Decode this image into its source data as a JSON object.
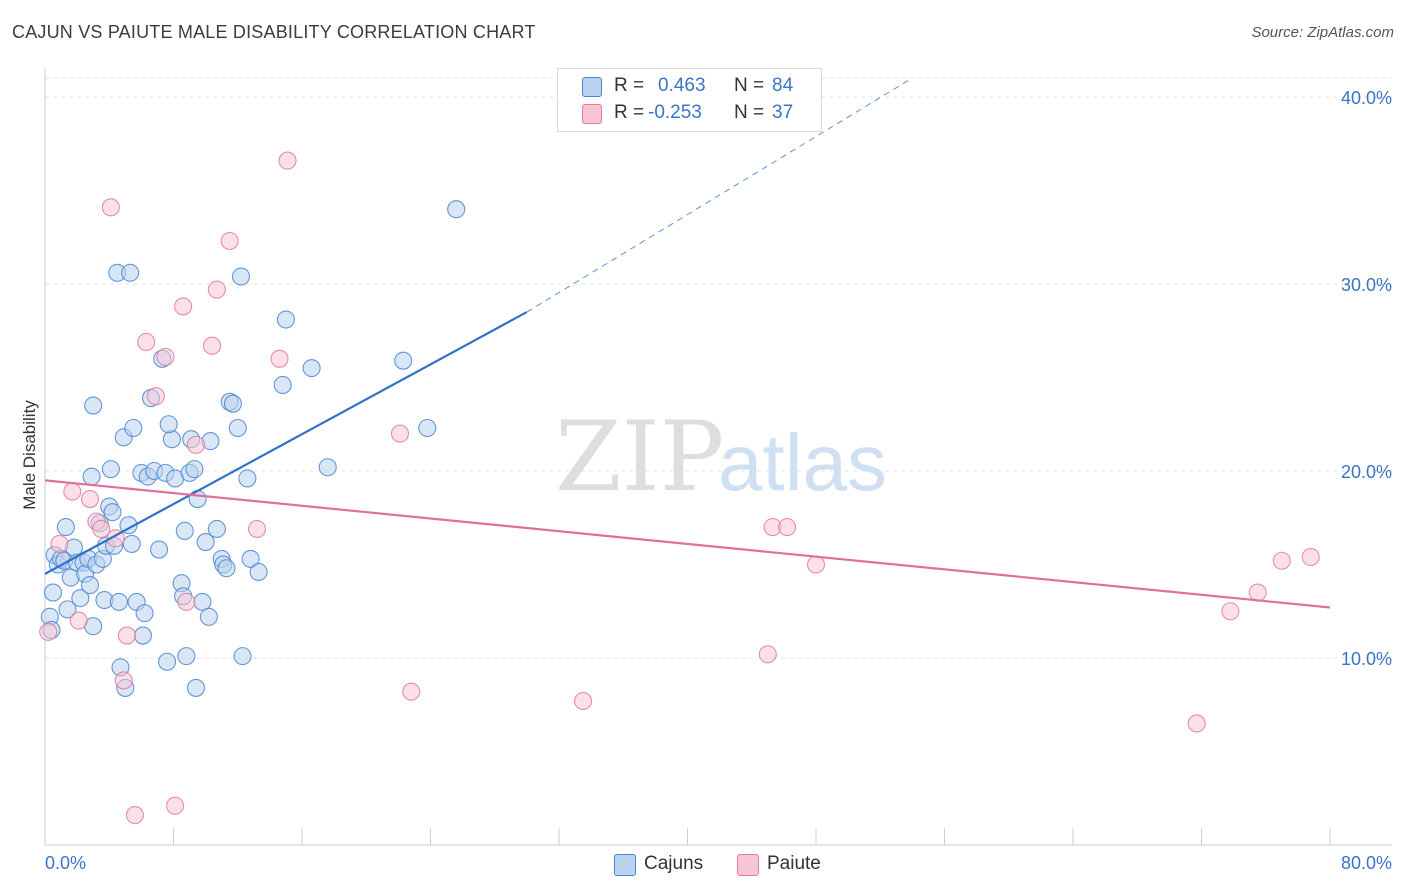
{
  "title": "CAJUN VS PAIUTE MALE DISABILITY CORRELATION CHART",
  "source": "Source: ZipAtlas.com",
  "watermark": {
    "zip": "ZIP",
    "atlas": "atlas"
  },
  "legend": {
    "rows": [
      {
        "r_label": "R =",
        "r_value": "0.463",
        "n_label": "N =",
        "n_value": "84"
      },
      {
        "r_label": "R =",
        "r_value": "-0.253",
        "n_label": "N =",
        "n_value": "37"
      }
    ]
  },
  "chart_data": {
    "type": "scatter",
    "title": "CAJUN VS PAIUTE MALE DISABILITY CORRELATION CHART",
    "xlabel": "",
    "ylabel": "Male Disability",
    "xlim": [
      0,
      80
    ],
    "ylim": [
      0,
      40
    ],
    "x_tick_labels": [
      "0.0%",
      "80.0%"
    ],
    "y_ticks": [
      10,
      20,
      30,
      40
    ],
    "y_tick_labels": [
      "10.0%",
      "20.0%",
      "30.0%",
      "40.0%"
    ],
    "grid": true,
    "legend_position": "top-center",
    "series": [
      {
        "name": "Cajuns",
        "color": "#4a86d0",
        "fill": "#b9d2ef",
        "r": 0.463,
        "n": 84,
        "trend": {
          "x": [
            0,
            30
          ],
          "y": [
            14.5,
            28.5
          ],
          "dashed_to": [
            54,
            40
          ]
        },
        "points": [
          [
            0.3,
            12.2
          ],
          [
            0.5,
            13.5
          ],
          [
            0.4,
            11.5
          ],
          [
            0.6,
            15.5
          ],
          [
            0.8,
            15.0
          ],
          [
            1.0,
            15.3
          ],
          [
            1.2,
            15.2
          ],
          [
            1.4,
            12.6
          ],
          [
            1.3,
            17.0
          ],
          [
            1.6,
            14.3
          ],
          [
            1.8,
            15.9
          ],
          [
            2.0,
            15.1
          ],
          [
            2.2,
            13.2
          ],
          [
            2.4,
            15.1
          ],
          [
            2.5,
            14.5
          ],
          [
            2.7,
            15.3
          ],
          [
            2.8,
            13.9
          ],
          [
            2.9,
            19.7
          ],
          [
            3.0,
            11.7
          ],
          [
            3.2,
            15.0
          ],
          [
            3.0,
            23.5
          ],
          [
            3.4,
            17.2
          ],
          [
            3.6,
            15.3
          ],
          [
            3.8,
            16.0
          ],
          [
            4.0,
            18.1
          ],
          [
            3.7,
            13.1
          ],
          [
            4.2,
            17.8
          ],
          [
            4.1,
            20.1
          ],
          [
            4.3,
            16.0
          ],
          [
            4.6,
            13.0
          ],
          [
            4.7,
            9.5
          ],
          [
            4.5,
            30.6
          ],
          [
            4.9,
            21.8
          ],
          [
            5.0,
            8.4
          ],
          [
            5.2,
            17.1
          ],
          [
            5.3,
            30.6
          ],
          [
            5.5,
            22.3
          ],
          [
            5.7,
            13.0
          ],
          [
            5.4,
            16.1
          ],
          [
            6.0,
            19.9
          ],
          [
            6.1,
            11.2
          ],
          [
            6.2,
            12.4
          ],
          [
            6.4,
            19.7
          ],
          [
            6.6,
            23.9
          ],
          [
            6.8,
            20.0
          ],
          [
            7.1,
            15.8
          ],
          [
            7.3,
            26.0
          ],
          [
            7.5,
            19.9
          ],
          [
            7.6,
            9.8
          ],
          [
            7.9,
            21.7
          ],
          [
            7.7,
            22.5
          ],
          [
            8.1,
            19.6
          ],
          [
            8.5,
            14.0
          ],
          [
            8.6,
            13.3
          ],
          [
            8.7,
            16.8
          ],
          [
            8.8,
            10.1
          ],
          [
            9.0,
            19.9
          ],
          [
            9.1,
            21.7
          ],
          [
            9.3,
            20.1
          ],
          [
            9.4,
            8.4
          ],
          [
            9.5,
            18.5
          ],
          [
            9.8,
            13.0
          ],
          [
            10.0,
            16.2
          ],
          [
            10.2,
            12.2
          ],
          [
            10.3,
            21.6
          ],
          [
            10.7,
            16.9
          ],
          [
            11.0,
            15.3
          ],
          [
            11.1,
            15.0
          ],
          [
            11.3,
            14.8
          ],
          [
            11.5,
            23.7
          ],
          [
            11.7,
            23.6
          ],
          [
            12.0,
            22.3
          ],
          [
            12.2,
            30.4
          ],
          [
            12.3,
            10.1
          ],
          [
            12.6,
            19.6
          ],
          [
            12.8,
            15.3
          ],
          [
            13.3,
            14.6
          ],
          [
            14.8,
            24.6
          ],
          [
            15.0,
            28.1
          ],
          [
            16.6,
            25.5
          ],
          [
            17.6,
            20.2
          ],
          [
            22.3,
            25.9
          ],
          [
            23.8,
            22.3
          ],
          [
            25.6,
            34.0
          ]
        ]
      },
      {
        "name": "Paiute",
        "color": "#e27aa0",
        "fill": "#f7c6d6",
        "r": -0.253,
        "n": 37,
        "trend": {
          "x": [
            0,
            80
          ],
          "y": [
            19.5,
            12.7
          ]
        },
        "points": [
          [
            0.2,
            11.4
          ],
          [
            0.9,
            16.1
          ],
          [
            1.7,
            18.9
          ],
          [
            2.1,
            12.0
          ],
          [
            2.8,
            18.5
          ],
          [
            3.2,
            17.3
          ],
          [
            3.5,
            16.9
          ],
          [
            4.1,
            34.1
          ],
          [
            4.4,
            16.4
          ],
          [
            4.9,
            8.8
          ],
          [
            5.1,
            11.2
          ],
          [
            5.6,
            1.6
          ],
          [
            6.3,
            26.9
          ],
          [
            6.9,
            24.0
          ],
          [
            7.5,
            26.1
          ],
          [
            8.1,
            2.1
          ],
          [
            8.6,
            28.8
          ],
          [
            8.8,
            13.0
          ],
          [
            9.4,
            21.4
          ],
          [
            10.4,
            26.7
          ],
          [
            10.7,
            29.7
          ],
          [
            11.5,
            32.3
          ],
          [
            13.2,
            16.9
          ],
          [
            14.6,
            26.0
          ],
          [
            15.1,
            36.6
          ],
          [
            22.1,
            22.0
          ],
          [
            22.8,
            8.2
          ],
          [
            33.5,
            7.7
          ],
          [
            45.0,
            10.2
          ],
          [
            45.3,
            17.0
          ],
          [
            46.2,
            17.0
          ],
          [
            48.0,
            15.0
          ],
          [
            71.7,
            6.5
          ],
          [
            73.8,
            12.5
          ],
          [
            75.5,
            13.5
          ],
          [
            77.0,
            15.2
          ],
          [
            78.8,
            15.4
          ]
        ]
      }
    ]
  }
}
